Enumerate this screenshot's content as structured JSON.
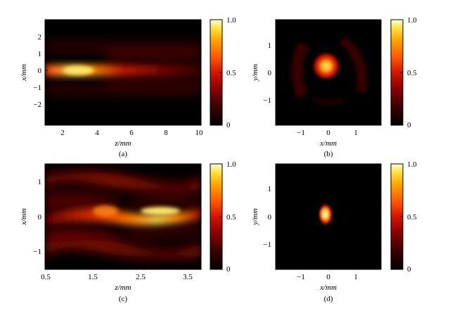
{
  "figure": {
    "panels": [
      {
        "label": "(a)",
        "xlabel": "z/mm",
        "ylabel": "x/mm",
        "xticks": [
          "2",
          "4",
          "6",
          "8",
          "10"
        ],
        "yticks": [
          "2",
          "1",
          "0",
          "−1",
          "−2"
        ],
        "colorbar": {
          "ticks": [
            "1.0",
            "0.5",
            "0"
          ]
        }
      },
      {
        "label": "(b)",
        "xlabel": "x/mm",
        "ylabel": "y/mm",
        "xticks": [
          "−1",
          "0",
          "1"
        ],
        "yticks": [
          "1",
          "0",
          "−1"
        ],
        "colorbar": {
          "ticks": [
            "1.0",
            "0.5",
            "0"
          ]
        }
      },
      {
        "label": "(c)",
        "xlabel": "z/mm",
        "ylabel": "x/mm",
        "xticks": [
          "0.5",
          "1.5",
          "2.5",
          "3.5"
        ],
        "yticks": [
          "1",
          "0",
          "−1"
        ],
        "colorbar": {
          "ticks": [
            "1.0",
            "0.5",
            "0"
          ]
        }
      },
      {
        "label": "(d)",
        "xlabel": "x/mm",
        "ylabel": "y/mm",
        "xticks": [
          "−1",
          "0",
          "1"
        ],
        "yticks": [
          "1",
          "0",
          "−1"
        ],
        "colorbar": {
          "ticks": [
            "1.0",
            "0.5",
            "0"
          ]
        }
      }
    ],
    "colormap": [
      "#000000",
      "#3a0000",
      "#8b0000",
      "#cc1a00",
      "#ff4b00",
      "#ff9900",
      "#ffdd33",
      "#ffffe0"
    ]
  },
  "chart_data": [
    {
      "type": "heatmap",
      "panel": "(a)",
      "xlabel": "z/mm",
      "ylabel": "x/mm",
      "xlim": [
        1,
        10
      ],
      "ylim": [
        -3,
        3
      ],
      "clim": [
        0,
        1
      ],
      "features": [
        {
          "z": 3,
          "x": 0.05,
          "intensity": 1.0
        },
        {
          "z": 6,
          "x": 0.0,
          "intensity": 0.3
        },
        {
          "z": 9,
          "x": 0.0,
          "intensity": 0.2
        }
      ]
    },
    {
      "type": "heatmap",
      "panel": "(b)",
      "xlabel": "x/mm",
      "ylabel": "y/mm",
      "xlim": [
        -1.9,
        1.9
      ],
      "ylim": [
        -1.9,
        1.9
      ],
      "clim": [
        0,
        1
      ],
      "features": [
        {
          "x": -0.05,
          "y": 0.2,
          "intensity": 0.8
        },
        {
          "x": -1.0,
          "y": 0.2,
          "intensity": 0.25
        },
        {
          "x": 0.95,
          "y": 0.3,
          "intensity": 0.25
        }
      ]
    },
    {
      "type": "heatmap",
      "panel": "(c)",
      "xlabel": "z/mm",
      "ylabel": "x/mm",
      "xlim": [
        0.5,
        3.75
      ],
      "ylim": [
        -1.5,
        1.5
      ],
      "clim": [
        0,
        1
      ],
      "features": [
        {
          "z": 2.9,
          "x": 0.15,
          "intensity": 1.0
        },
        {
          "z": 1.8,
          "x": 0.1,
          "intensity": 0.55
        },
        {
          "z": 1.5,
          "x": 1.0,
          "intensity": 0.45
        },
        {
          "z": 1.5,
          "x": -1.0,
          "intensity": 0.4
        }
      ]
    },
    {
      "type": "heatmap",
      "panel": "(d)",
      "xlabel": "x/mm",
      "ylabel": "y/mm",
      "xlim": [
        -1.9,
        1.9
      ],
      "ylim": [
        -1.9,
        1.9
      ],
      "clim": [
        0,
        1
      ],
      "features": [
        {
          "x": -0.05,
          "y": 0.05,
          "intensity": 1.0
        }
      ]
    }
  ]
}
